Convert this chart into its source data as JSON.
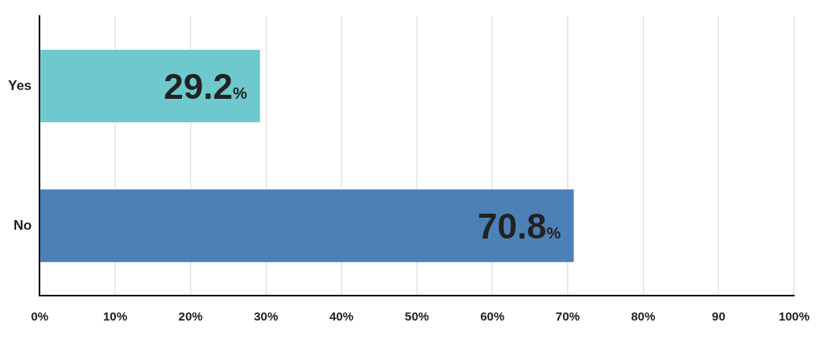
{
  "chart_data": {
    "type": "bar",
    "orientation": "horizontal",
    "categories": [
      "Yes",
      "No"
    ],
    "values": [
      29.2,
      70.8
    ],
    "colors": [
      "#6ec8cc",
      "#4e80b8"
    ],
    "value_labels": [
      "29.2%",
      "70.8%"
    ],
    "xlim": [
      0,
      100
    ],
    "xticks": [
      {
        "value": 0,
        "label": "0%"
      },
      {
        "value": 10,
        "label": "10%"
      },
      {
        "value": 20,
        "label": "20%"
      },
      {
        "value": 30,
        "label": "30%"
      },
      {
        "value": 40,
        "label": "40%"
      },
      {
        "value": 50,
        "label": "50%"
      },
      {
        "value": 60,
        "label": "60%"
      },
      {
        "value": 70,
        "label": "70%"
      },
      {
        "value": 80,
        "label": "80%"
      },
      90,
      {
        "value": 100,
        "label": "100%"
      }
    ],
    "grid": "x",
    "legend": false
  }
}
